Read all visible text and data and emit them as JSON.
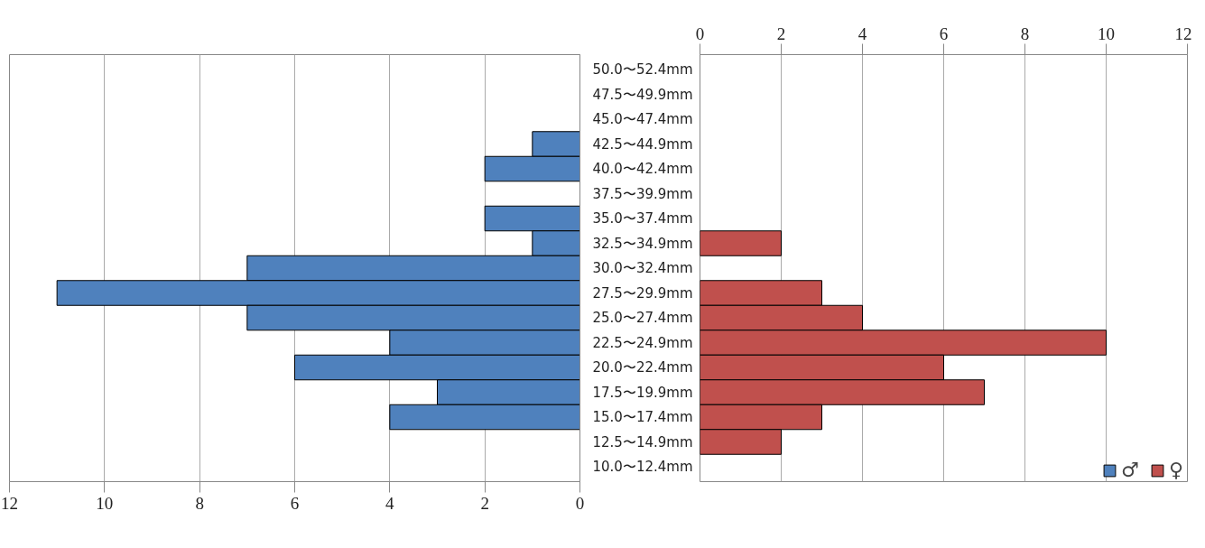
{
  "chart_data": [
    {
      "type": "bar",
      "orientation": "horizontal",
      "categories": [
        "50.0〜52.4mm",
        "47.5〜49.9mm",
        "45.0〜47.4mm",
        "42.5〜44.9mm",
        "40.0〜42.4mm",
        "37.5〜39.9mm",
        "35.0〜37.4mm",
        "32.5〜34.9mm",
        "30.0〜32.4mm",
        "27.5〜29.9mm",
        "25.0〜27.4mm",
        "22.5〜24.9mm",
        "20.0〜22.4mm",
        "17.5〜19.9mm",
        "15.0〜17.4mm",
        "12.5〜14.9mm",
        "10.0〜12.4mm"
      ],
      "series": [
        {
          "name": "♂",
          "color": "#4f81bd",
          "values": [
            0,
            0,
            0,
            1,
            2,
            0,
            2,
            1,
            7,
            11,
            7,
            4,
            6,
            3,
            4,
            0,
            0
          ]
        }
      ],
      "xlim": [
        12,
        0
      ],
      "xticks": [
        12,
        10,
        8,
        6,
        4,
        2,
        0
      ],
      "grid": "x",
      "legend": "bottom right"
    },
    {
      "type": "bar",
      "orientation": "horizontal",
      "series": [
        {
          "name": "♀",
          "color": "#c0504d",
          "values": [
            0,
            0,
            0,
            0,
            0,
            0,
            0,
            2,
            0,
            3,
            4,
            10,
            6,
            7,
            3,
            2,
            0
          ]
        }
      ],
      "xlim": [
        0,
        12
      ],
      "xticks": [
        0,
        2,
        4,
        6,
        8,
        10,
        12
      ],
      "grid": "x",
      "legend": "bottom right",
      "tick_labels": "x"
    }
  ]
}
